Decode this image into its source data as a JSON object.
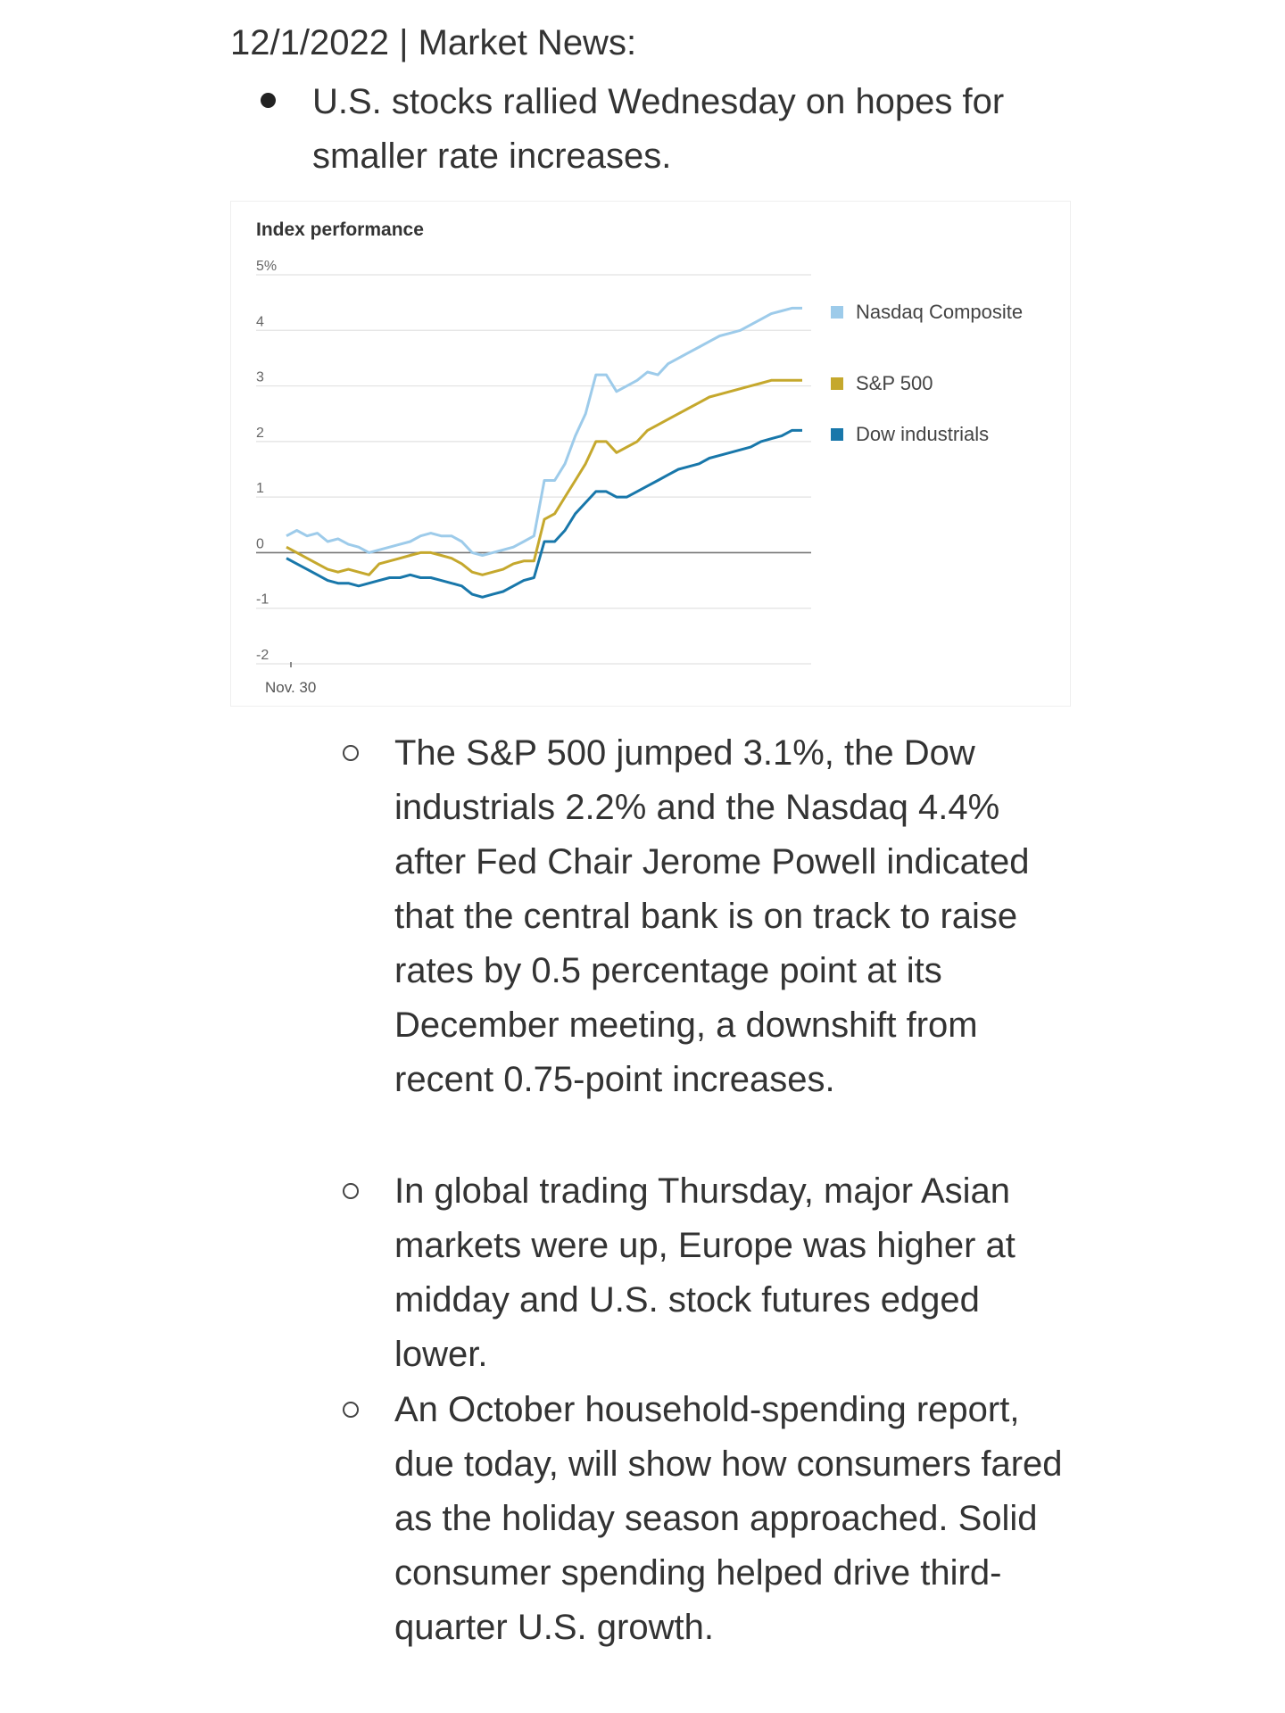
{
  "header": {
    "text": "12/1/2022 | Market News:"
  },
  "main_bullet": {
    "text": "U.S. stocks rallied Wednesday on hopes for smaller rate increases."
  },
  "sub_bullets": [
    {
      "text": "The S&P 500 jumped 3.1%, the Dow industrials 2.2% and the Nasdaq 4.4% after Fed Chair Jerome Powell indicated that the central bank is on track to raise rates by 0.5 percentage point at its December meeting, a downshift from recent 0.75-point increases."
    },
    {
      "text": "In global trading Thursday, major Asian markets were up, Europe was higher at midday and U.S. stock futures edged lower."
    },
    {
      "text": "An October household-spending report, due today, will show how consumers fared as the holiday season approached. Solid consumer spending helped drive third-quarter U.S. growth."
    }
  ],
  "chart_data": {
    "type": "line",
    "title": "Index performance",
    "x_tick_label": "Nov. 30",
    "x": [
      0,
      2,
      4,
      6,
      8,
      10,
      12,
      14,
      16,
      18,
      20,
      22,
      24,
      26,
      28,
      30,
      32,
      34,
      36,
      38,
      40,
      42,
      44,
      46,
      48,
      50,
      52,
      54,
      56,
      58,
      60,
      62,
      64,
      66,
      68,
      70,
      72,
      74,
      76,
      78,
      80,
      82,
      84,
      86,
      88,
      90,
      92,
      94,
      96,
      98,
      100
    ],
    "y_ticks": [
      5,
      4,
      3,
      2,
      1,
      0,
      -1,
      -2
    ],
    "y_tick_labels": [
      "5%",
      "4",
      "3",
      "2",
      "1",
      "0",
      "-1",
      "-2"
    ],
    "ylim": [
      -2,
      5
    ],
    "grid": true,
    "legend_position": "right",
    "series": [
      {
        "name": "Nasdaq Composite",
        "color": "#9dcbea",
        "values": [
          0.3,
          0.4,
          0.3,
          0.35,
          0.2,
          0.25,
          0.15,
          0.1,
          0,
          0.05,
          0.1,
          0.15,
          0.2,
          0.3,
          0.35,
          0.3,
          0.3,
          0.2,
          0,
          -0.05,
          0,
          0.05,
          0.1,
          0.2,
          0.3,
          1.3,
          1.3,
          1.6,
          2.1,
          2.5,
          3.2,
          3.2,
          2.9,
          3.0,
          3.1,
          3.25,
          3.2,
          3.4,
          3.5,
          3.6,
          3.7,
          3.8,
          3.9,
          3.95,
          4.0,
          4.1,
          4.2,
          4.3,
          4.35,
          4.4,
          4.4
        ]
      },
      {
        "name": "S&P 500",
        "color": "#c5a82d",
        "values": [
          0.1,
          0,
          -0.1,
          -0.2,
          -0.3,
          -0.35,
          -0.3,
          -0.35,
          -0.4,
          -0.2,
          -0.15,
          -0.1,
          -0.05,
          0,
          0,
          -0.05,
          -0.1,
          -0.2,
          -0.35,
          -0.4,
          -0.35,
          -0.3,
          -0.2,
          -0.15,
          -0.15,
          0.6,
          0.7,
          1.0,
          1.3,
          1.6,
          2.0,
          2.0,
          1.8,
          1.9,
          2.0,
          2.2,
          2.3,
          2.4,
          2.5,
          2.6,
          2.7,
          2.8,
          2.85,
          2.9,
          2.95,
          3.0,
          3.05,
          3.1,
          3.1,
          3.1,
          3.1
        ]
      },
      {
        "name": "Dow industrials",
        "color": "#1877aa",
        "values": [
          -0.1,
          -0.2,
          -0.3,
          -0.4,
          -0.5,
          -0.55,
          -0.55,
          -0.6,
          -0.55,
          -0.5,
          -0.45,
          -0.45,
          -0.4,
          -0.45,
          -0.45,
          -0.5,
          -0.55,
          -0.6,
          -0.75,
          -0.8,
          -0.75,
          -0.7,
          -0.6,
          -0.5,
          -0.45,
          0.2,
          0.2,
          0.4,
          0.7,
          0.9,
          1.1,
          1.1,
          1.0,
          1.0,
          1.1,
          1.2,
          1.3,
          1.4,
          1.5,
          1.55,
          1.6,
          1.7,
          1.75,
          1.8,
          1.85,
          1.9,
          2.0,
          2.05,
          2.1,
          2.2,
          2.2
        ]
      }
    ]
  }
}
